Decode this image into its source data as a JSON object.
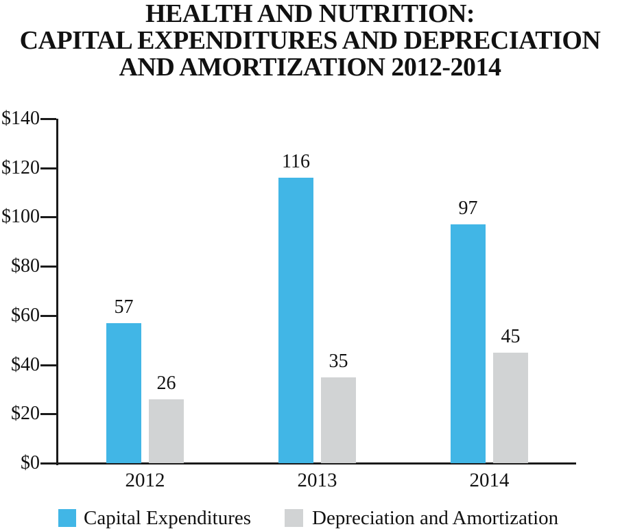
{
  "title": {
    "lines": [
      "HEALTH AND NUTRITION:",
      "CAPITAL EXPENDITURES AND DEPRECIATION",
      "AND AMORTIZATION 2012-2014"
    ]
  },
  "chart_data": {
    "type": "bar",
    "title": "HEALTH AND NUTRITION: CAPITAL EXPENDITURES AND DEPRECIATION AND AMORTIZATION 2012-2014",
    "categories": [
      "2012",
      "2013",
      "2014"
    ],
    "series": [
      {
        "name": "Capital Expenditures",
        "color": "#41b6e6",
        "values": [
          57,
          116,
          97
        ]
      },
      {
        "name": "Depreciation and Amortization",
        "color": "#d1d3d4",
        "values": [
          26,
          35,
          45
        ]
      }
    ],
    "value_labels": [
      [
        "57",
        "116",
        "97"
      ],
      [
        "26",
        "35",
        "45"
      ]
    ],
    "xlabel": "",
    "ylabel": "",
    "ylim": [
      0,
      140
    ],
    "ytick_step": 20,
    "yticks": [
      "$0",
      "$20",
      "$40",
      "$60",
      "$80",
      "$100",
      "$120",
      "$140"
    ],
    "ytick_prefix": "$",
    "grid": false,
    "legend_position": "bottom",
    "bar_value_labels_shown": true
  },
  "colors": {
    "axis": "#1a1a1a",
    "text": "#111111",
    "background": "#ffffff"
  }
}
